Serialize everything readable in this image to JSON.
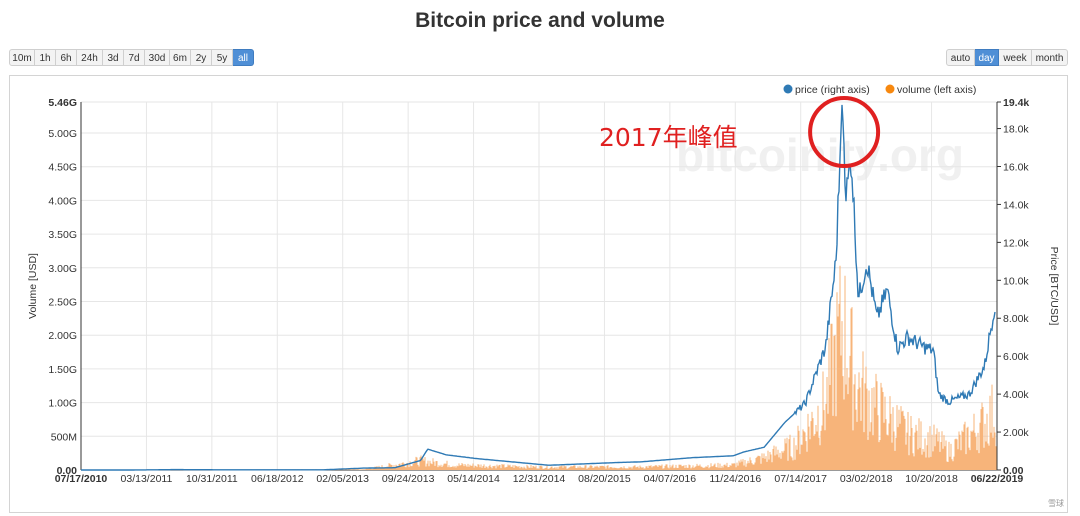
{
  "title": "Bitcoin price and volume",
  "range_buttons": [
    "10m",
    "1h",
    "6h",
    "24h",
    "3d",
    "7d",
    "30d",
    "6m",
    "2y",
    "5y",
    "all"
  ],
  "range_active": "all",
  "interval_buttons": [
    "auto",
    "day",
    "week",
    "month"
  ],
  "interval_active": "day",
  "annotation": {
    "text": "2017年峰值",
    "color": "#e02020"
  },
  "watermark_site": "bitcoinity.org",
  "corner_mark": "雪球",
  "colors": {
    "price": "#2f7ab5",
    "volume": "#f7b47a",
    "grid": "#e6e6e6",
    "accent": "#4f8fd6"
  },
  "chart_data": {
    "type": "line+area",
    "xlabel": "",
    "y_left_label": "Volume [USD]",
    "y_right_label": "Price [BTC/USD]",
    "y_left_ticks": [
      "0.00",
      "500M",
      "1.00G",
      "1.50G",
      "2.00G",
      "2.50G",
      "3.00G",
      "3.50G",
      "4.00G",
      "4.50G",
      "5.00G",
      "5.46G"
    ],
    "y_left_values": [
      0,
      0.5,
      1.0,
      1.5,
      2.0,
      2.5,
      3.0,
      3.5,
      4.0,
      4.5,
      5.0,
      5.46
    ],
    "y_left_unit": "G USD",
    "y_right_ticks": [
      "0.00",
      "2.00k",
      "4.00k",
      "6.00k",
      "8.00k",
      "10.0k",
      "12.0k",
      "14.0k",
      "16.0k",
      "18.0k",
      "19.4k"
    ],
    "y_right_values": [
      0,
      2,
      4,
      6,
      8,
      10,
      12,
      14,
      16,
      18,
      19.4
    ],
    "y_right_unit": "k USD",
    "x_ticks": [
      "07/17/2010",
      "03/13/2011",
      "10/31/2011",
      "06/18/2012",
      "02/05/2013",
      "09/24/2013",
      "05/14/2014",
      "12/31/2014",
      "08/20/2015",
      "04/07/2016",
      "11/24/2016",
      "07/14/2017",
      "03/02/2018",
      "10/20/2018",
      "06/22/2019"
    ],
    "legend": [
      {
        "name": "price (right axis)",
        "color": "#2f7ab5"
      },
      {
        "name": "volume (left axis)",
        "color": "#f7880f"
      }
    ],
    "legend_position": "top-right",
    "grid": true,
    "price_series": {
      "name": "price (right axis)",
      "x_years": [
        2010.54,
        2011.0,
        2011.45,
        2012.0,
        2012.9,
        2013.3,
        2013.6,
        2013.85,
        2013.92,
        2014.1,
        2014.4,
        2014.9,
        2015.1,
        2015.8,
        2016.0,
        2016.5,
        2016.9,
        2017.0,
        2017.2,
        2017.4,
        2017.6,
        2017.8,
        2017.9,
        2017.96,
        2018.0,
        2018.05,
        2018.12,
        2018.2,
        2018.3,
        2018.4,
        2018.5,
        2018.6,
        2018.75,
        2018.85,
        2018.9,
        2019.0,
        2019.2,
        2019.35,
        2019.45,
        2019.47
      ],
      "y_k": [
        0.0,
        0.0,
        0.02,
        0.01,
        0.01,
        0.1,
        0.12,
        0.5,
        1.1,
        0.8,
        0.6,
        0.35,
        0.25,
        0.4,
        0.43,
        0.65,
        0.75,
        0.95,
        1.2,
        2.5,
        3.5,
        6.5,
        11.0,
        19.4,
        14.5,
        16.5,
        9.0,
        11.0,
        8.0,
        9.5,
        6.4,
        7.0,
        6.5,
        6.3,
        4.0,
        3.6,
        4.0,
        5.5,
        8.8,
        9.6
      ]
    },
    "volume_series": {
      "name": "volume (left axis)",
      "x_years": [
        2010.54,
        2013.3,
        2013.85,
        2014.2,
        2015.0,
        2016.0,
        2016.9,
        2017.2,
        2017.5,
        2017.8,
        2017.96,
        2018.1,
        2018.3,
        2018.6,
        2018.9,
        2019.0,
        2019.3,
        2019.47
      ],
      "y_g": [
        0.0,
        0.01,
        0.15,
        0.08,
        0.05,
        0.05,
        0.08,
        0.2,
        0.4,
        1.1,
        2.4,
        1.4,
        1.0,
        0.6,
        0.45,
        0.3,
        0.7,
        1.0
      ]
    }
  }
}
